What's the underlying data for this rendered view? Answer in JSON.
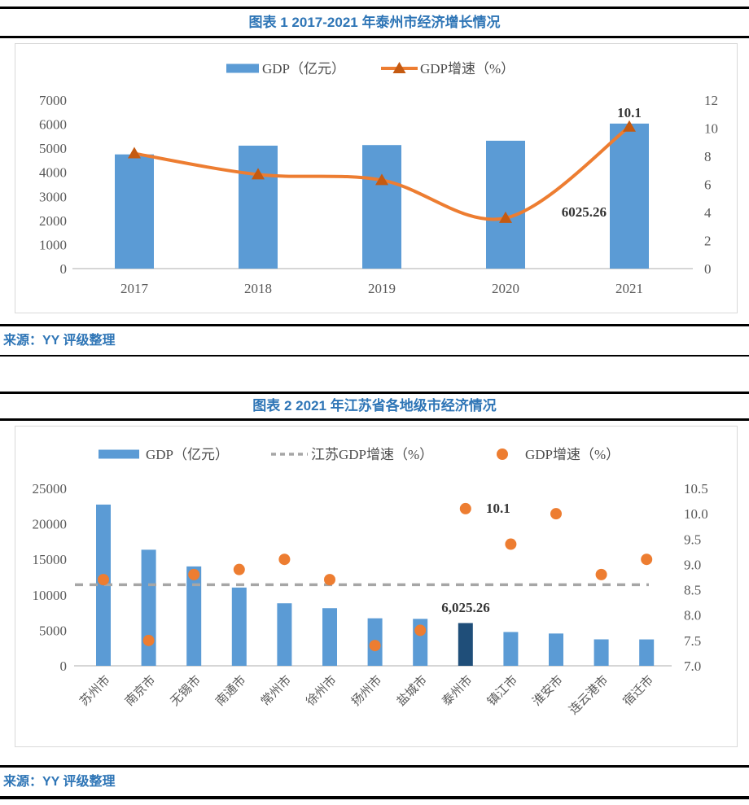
{
  "figures": [
    {
      "title": "图表 1 2017-2021 年泰州市经济增长情况",
      "source": "来源：YY 评级整理"
    },
    {
      "title": "图表 2 2021 年江苏省各地级市经济情况",
      "source": "来源：YY 评级整理"
    }
  ],
  "colors": {
    "bar_blue": "#5B9BD5",
    "bar_dark_blue": "#1F4E79",
    "orange": "#ED7D31",
    "marker_dark_orange": "#C55A11",
    "dashed_gray": "#A6A6A6",
    "axis_text": "#595959",
    "legend_text": "#4D4D4D",
    "annotation_text": "#333333",
    "title_blue": "#2E75B6",
    "axis_line": "#C9C9C9"
  },
  "chart_data": [
    {
      "type": "bar",
      "subtype": "combo-bar-line",
      "title": "图表 1 2017-2021 年泰州市经济增长情况",
      "categories": [
        "2017",
        "2018",
        "2019",
        "2020",
        "2021"
      ],
      "series": [
        {
          "name": "GDP（亿元）",
          "kind": "bar",
          "axis": "left",
          "values": [
            4745,
            5108,
            5133,
            5313,
            6025.26
          ],
          "color": "#5B9BD5"
        },
        {
          "name": "GDP增速（%）",
          "kind": "line",
          "axis": "right",
          "values": [
            8.2,
            6.7,
            6.3,
            3.6,
            10.1
          ],
          "color": "#ED7D31",
          "marker": "triangle",
          "marker_color": "#C55A11"
        }
      ],
      "left_axis": {
        "min": 0,
        "max": 7000,
        "step": 1000,
        "decimals": 0
      },
      "right_axis": {
        "min": 0,
        "max": 12,
        "step": 2,
        "decimals": 0
      },
      "annotations": [
        "10.1",
        "6025.26"
      ],
      "legend_position": "top",
      "grid": false
    },
    {
      "type": "bar",
      "subtype": "combo-bar-scatter-refline",
      "title": "图表 2 2021 年江苏省各地级市经济情况",
      "categories": [
        "苏州市",
        "南京市",
        "无锡市",
        "南通市",
        "常州市",
        "徐州市",
        "扬州市",
        "盐城市",
        "泰州市",
        "镇江市",
        "淮安市",
        "连云港市",
        "宿迁市"
      ],
      "series": [
        {
          "name": "GDP（亿元）",
          "kind": "bar",
          "axis": "left",
          "values": [
            22718,
            16355,
            14003,
            11027,
            8808,
            8117,
            6696,
            6617,
            6025.26,
            4763,
            4550,
            3728,
            3719
          ],
          "color": "#5B9BD5",
          "highlight_index": 8,
          "highlight_color": "#1F4E79"
        },
        {
          "name": "江苏GDP增速（%）",
          "kind": "refline",
          "axis": "right",
          "value": 8.6,
          "color": "#A6A6A6"
        },
        {
          "name": "GDP增速（%）",
          "kind": "scatter",
          "axis": "right",
          "values": [
            8.7,
            7.5,
            8.8,
            8.9,
            9.1,
            8.7,
            7.4,
            7.7,
            10.1,
            9.4,
            10.0,
            8.8,
            9.1
          ],
          "color": "#ED7D31"
        }
      ],
      "left_axis": {
        "min": 0,
        "max": 25000,
        "step": 5000,
        "decimals": 0
      },
      "right_axis": {
        "min": 7.0,
        "max": 10.5,
        "step": 0.5,
        "decimals": 1
      },
      "annotations": [
        "6,025.26",
        "10.1"
      ],
      "legend_position": "top",
      "grid": false
    }
  ]
}
